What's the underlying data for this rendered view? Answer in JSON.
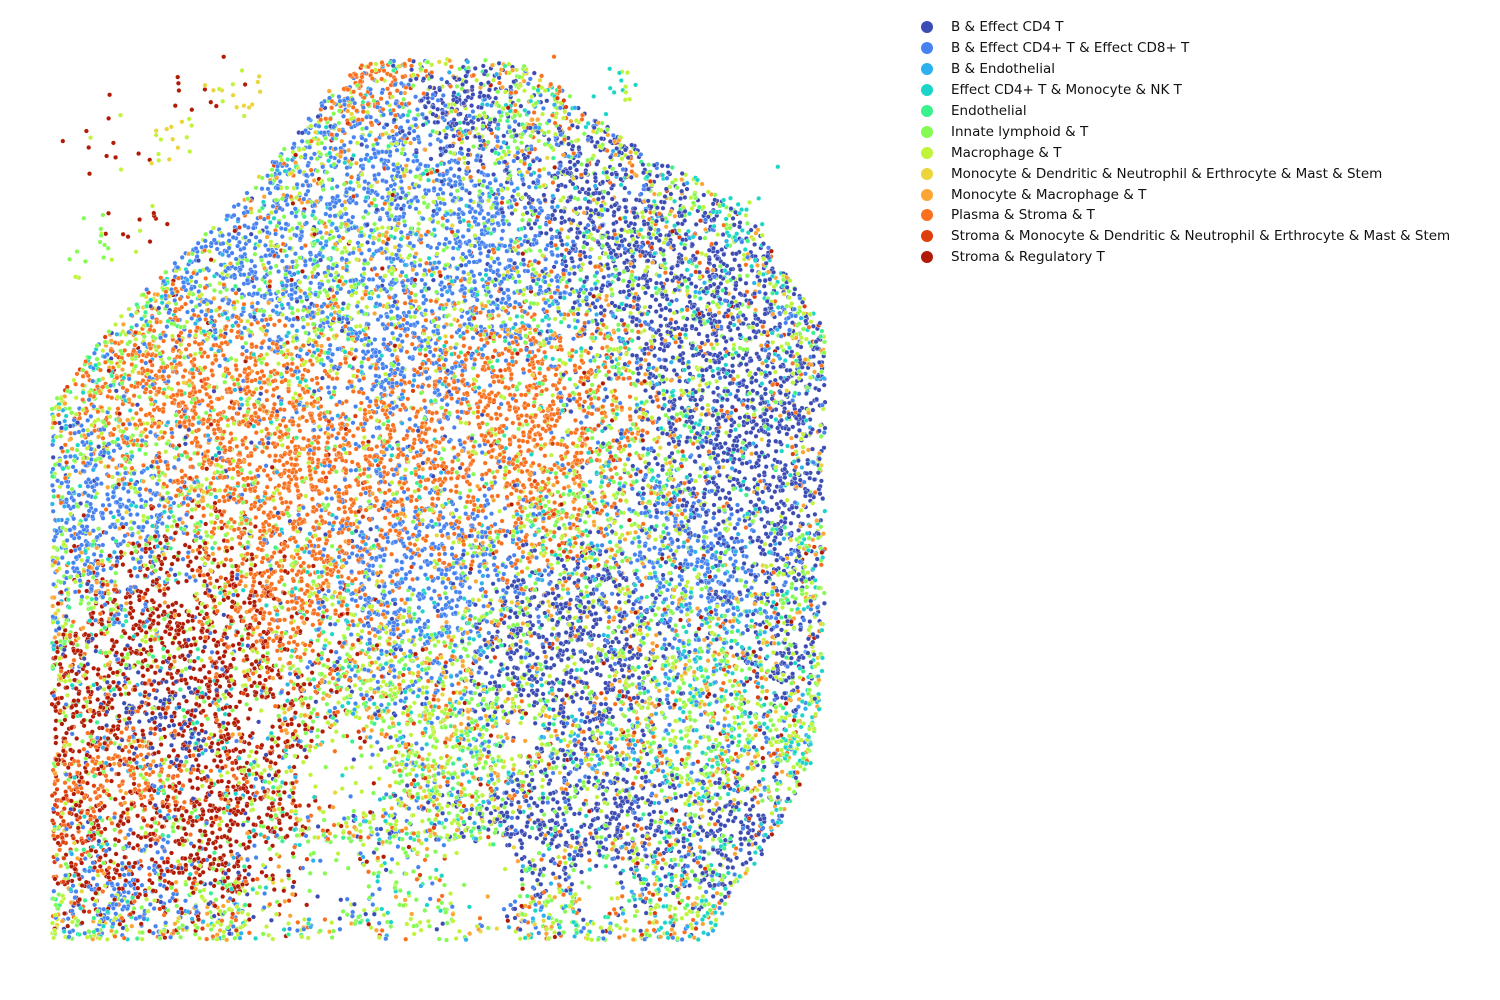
{
  "chart_data": {
    "type": "scatter",
    "title": "",
    "xlabel": "",
    "ylabel": "",
    "axes_visible": false,
    "grid": false,
    "legend_position": "top-right",
    "series": [
      {
        "name": "B & Effect CD4 T",
        "color": "#3b4cb4"
      },
      {
        "name": "B & Effect CD4+ T & Effect CD8+ T",
        "color": "#4683f0"
      },
      {
        "name": "B & Endothelial",
        "color": "#2cb1ee"
      },
      {
        "name": "Effect CD4+ T & Monocyte & NK T",
        "color": "#1bd6c8"
      },
      {
        "name": "Endothelial",
        "color": "#39f28e"
      },
      {
        "name": "Innate lymphoid & T",
        "color": "#84fb52"
      },
      {
        "name": "Macrophage & T",
        "color": "#bff43a"
      },
      {
        "name": "Monocyte & Dendritic & Neutrophil & Erthrocyte & Mast & Stem",
        "color": "#ecd43b"
      },
      {
        "name": "Monocyte & Macrophage & T",
        "color": "#fba534"
      },
      {
        "name": "Plasma & Stroma & T",
        "color": "#f9711f"
      },
      {
        "name": "Stroma & Monocyte & Dendritic & Neutrophil & Erthrocyte & Mast & Stem",
        "color": "#de3e0b"
      },
      {
        "name": "Stroma & Regulatory T",
        "color": "#b11a04"
      }
    ]
  }
}
